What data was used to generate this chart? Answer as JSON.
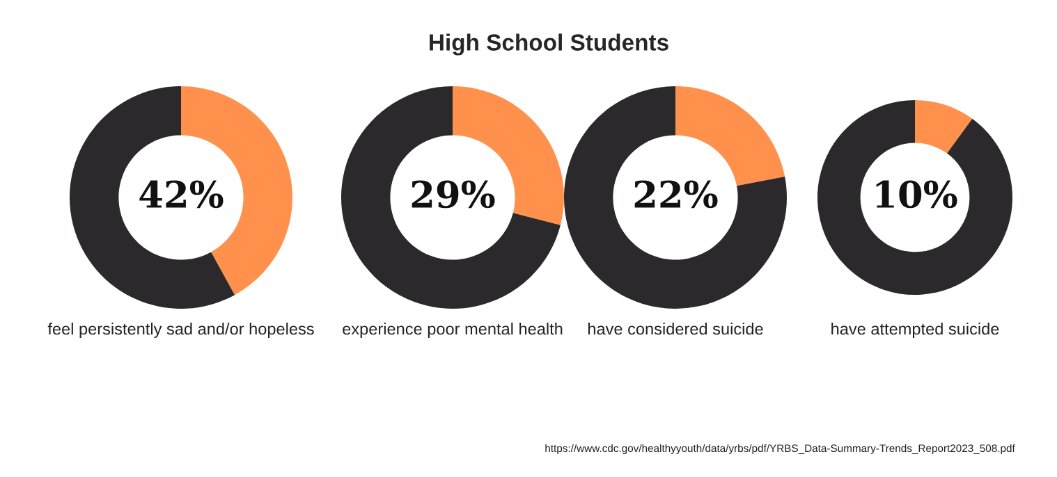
{
  "chart_data": [
    {
      "type": "donut",
      "categories": [
        null,
        null
      ],
      "values": [
        42,
        58
      ],
      "colors": [
        "#ff914d",
        "#2b292b"
      ],
      "value_labels": [
        "42%",
        null
      ],
      "annotations": [
        "feel persistently sad and/or hopeless"
      ]
    },
    {
      "type": "donut",
      "title": "High School Students",
      "categories": [
        null,
        null
      ],
      "values": [
        29,
        71
      ],
      "colors": [
        "#ff914d",
        "#2b292b"
      ],
      "value_labels": [
        "29%",
        null
      ],
      "annotations": [
        "experience poor mental health"
      ]
    },
    {
      "type": "donut",
      "categories": [
        null,
        null
      ],
      "values": [
        22,
        78
      ],
      "colors": [
        "#ff914d",
        "#2b292b"
      ],
      "value_labels": [
        "22%",
        null
      ],
      "annotations": [
        "have considered suicide"
      ]
    },
    {
      "type": "donut",
      "categories": [
        null,
        null
      ],
      "values": [
        10,
        90
      ],
      "colors": [
        "#ff914d",
        "#2b292b"
      ],
      "value_labels": [
        "10%",
        null
      ],
      "annotations": [
        "have attempted suicide",
        "https://www.cdc.gov/healthyyouth/data/yrbs/pdf/YRBS_Data-Summary-Trends_Report2023_508.pdf"
      ]
    }
  ]
}
